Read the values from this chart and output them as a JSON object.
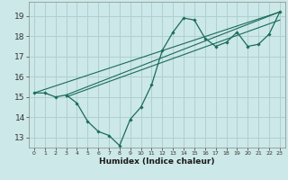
{
  "title": "",
  "xlabel": "Humidex (Indice chaleur)",
  "ylabel": "",
  "bg_color": "#cce8e8",
  "grid_color": "#b0d0d0",
  "line_color": "#1a6b5a",
  "xlim": [
    -0.5,
    23.5
  ],
  "ylim": [
    12.5,
    19.7
  ],
  "xticks": [
    0,
    1,
    2,
    3,
    4,
    5,
    6,
    7,
    8,
    9,
    10,
    11,
    12,
    13,
    14,
    15,
    16,
    17,
    18,
    19,
    20,
    21,
    22,
    23
  ],
  "yticks": [
    13,
    14,
    15,
    16,
    17,
    18,
    19
  ],
  "main_series": {
    "x": [
      0,
      1,
      2,
      3,
      4,
      5,
      6,
      7,
      8,
      9,
      10,
      11,
      12,
      13,
      14,
      15,
      16,
      17,
      18,
      19,
      20,
      21,
      22,
      23
    ],
    "y": [
      15.2,
      15.2,
      15.0,
      15.1,
      14.7,
      13.8,
      13.3,
      13.1,
      12.6,
      13.9,
      14.5,
      15.6,
      17.3,
      18.2,
      18.9,
      18.8,
      17.9,
      17.5,
      17.7,
      18.2,
      17.5,
      17.6,
      18.1,
      19.2
    ]
  },
  "line1": {
    "x": [
      0,
      23
    ],
    "y": [
      15.2,
      19.2
    ]
  },
  "line2": {
    "x": [
      3,
      23
    ],
    "y": [
      15.1,
      19.2
    ]
  },
  "line3": {
    "x": [
      3,
      23
    ],
    "y": [
      15.0,
      18.8
    ]
  }
}
